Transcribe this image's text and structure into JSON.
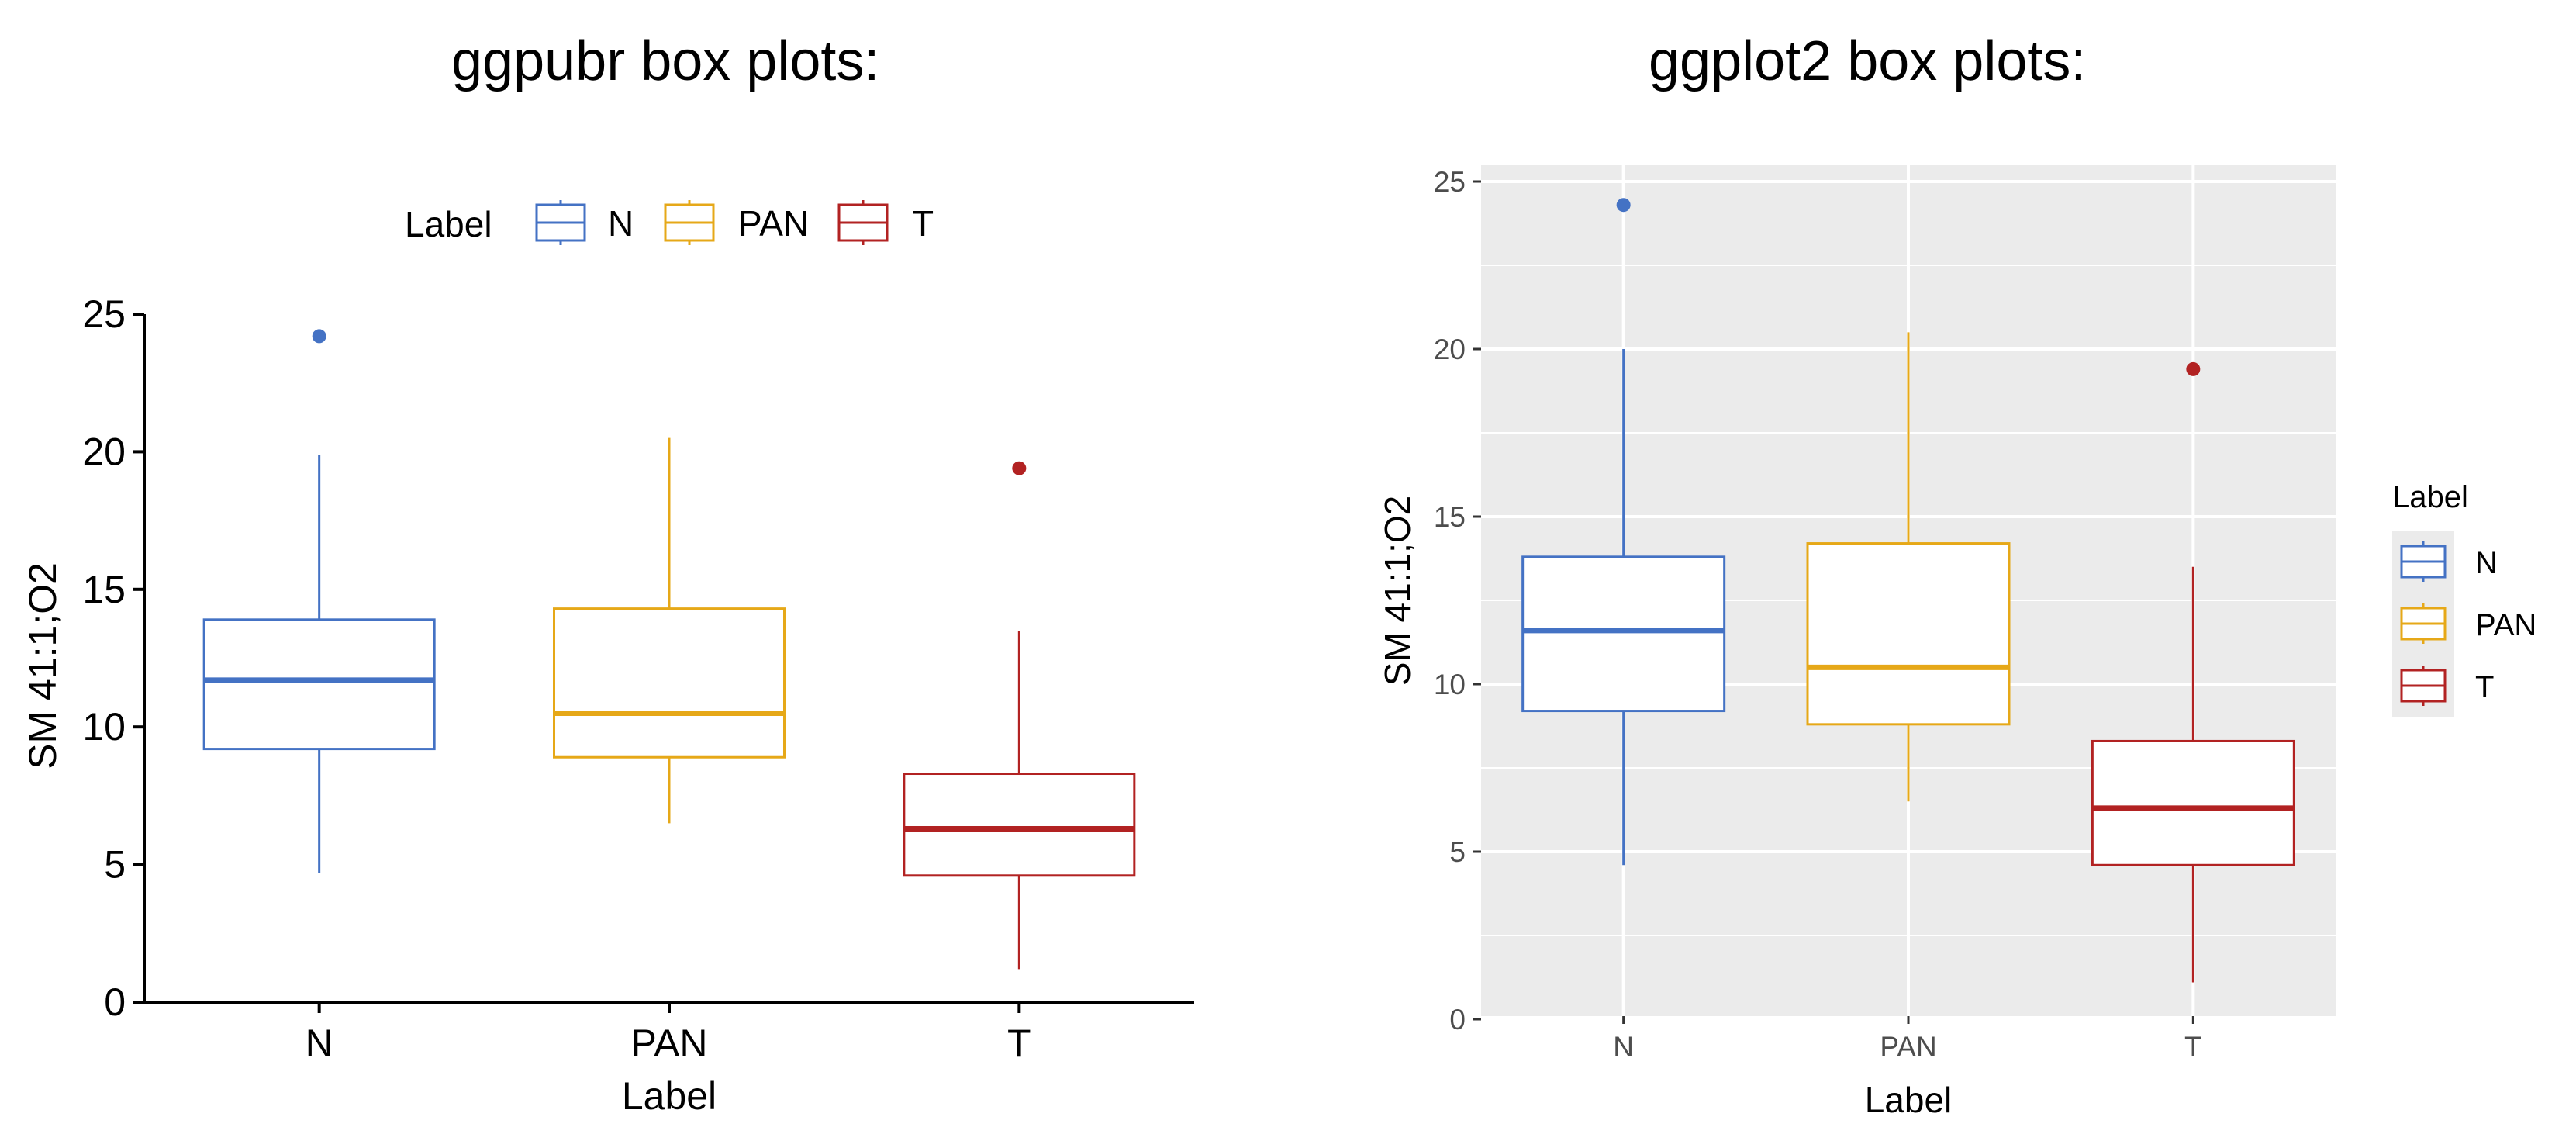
{
  "titles": {
    "left": "ggpubr box plots:",
    "right": "ggplot2 box plots:"
  },
  "chart_data": [
    {
      "type": "box",
      "style": "ggpubr",
      "title": "ggpubr box plots:",
      "xlabel": "Label",
      "ylabel": "SM 41:1;O2",
      "ylim": [
        0,
        25
      ],
      "yticks": [
        0,
        5,
        10,
        15,
        20,
        25
      ],
      "grid": false,
      "legend": {
        "title": "Label",
        "position": "top",
        "entries": [
          "N",
          "PAN",
          "T"
        ]
      },
      "categories": [
        "N",
        "PAN",
        "T"
      ],
      "series": [
        {
          "name": "N",
          "color": "#4472c4",
          "min": 4.7,
          "q1": 9.2,
          "median": 11.7,
          "q3": 13.9,
          "max": 19.9,
          "outliers": [
            24.2
          ]
        },
        {
          "name": "PAN",
          "color": "#e6a818",
          "min": 6.5,
          "q1": 8.9,
          "median": 10.5,
          "q3": 14.3,
          "max": 20.5,
          "outliers": []
        },
        {
          "name": "T",
          "color": "#b22222",
          "min": 1.2,
          "q1": 4.6,
          "median": 6.3,
          "q3": 8.3,
          "max": 13.5,
          "outliers": [
            19.4
          ]
        }
      ]
    },
    {
      "type": "box",
      "style": "ggplot2",
      "title": "ggplot2 box plots:",
      "xlabel": "Label",
      "ylabel": "SM 41:1;O2",
      "ylim": [
        0,
        25
      ],
      "yticks": [
        0,
        5,
        10,
        15,
        20,
        25
      ],
      "grid": true,
      "legend": {
        "title": "Label",
        "position": "right",
        "entries": [
          "N",
          "PAN",
          "T"
        ]
      },
      "categories": [
        "N",
        "PAN",
        "T"
      ],
      "series": [
        {
          "name": "N",
          "color": "#4472c4",
          "min": 4.6,
          "q1": 9.2,
          "median": 11.6,
          "q3": 13.8,
          "max": 20.0,
          "outliers": [
            24.3
          ]
        },
        {
          "name": "PAN",
          "color": "#e6a818",
          "min": 6.5,
          "q1": 8.8,
          "median": 10.5,
          "q3": 14.2,
          "max": 20.5,
          "outliers": []
        },
        {
          "name": "T",
          "color": "#b22222",
          "min": 1.1,
          "q1": 4.6,
          "median": 6.3,
          "q3": 8.3,
          "max": 13.5,
          "outliers": [
            19.4
          ]
        }
      ]
    }
  ]
}
